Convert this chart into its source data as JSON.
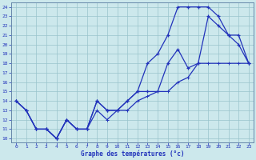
{
  "xlabel": "Graphe des températures (°c)",
  "bg_color": "#cce8ec",
  "line_color": "#2233bb",
  "grid_color": "#99c4cc",
  "xlim": [
    -0.5,
    23.5
  ],
  "ylim": [
    9.6,
    24.5
  ],
  "xticks": [
    0,
    1,
    2,
    3,
    4,
    5,
    6,
    7,
    8,
    9,
    10,
    11,
    12,
    13,
    14,
    15,
    16,
    17,
    18,
    19,
    20,
    21,
    22,
    23
  ],
  "yticks": [
    10,
    11,
    12,
    13,
    14,
    15,
    16,
    17,
    18,
    19,
    20,
    21,
    22,
    23,
    24
  ],
  "line1_x": [
    0,
    1,
    2,
    3,
    4,
    5,
    6,
    7,
    8,
    9,
    10,
    11,
    12,
    13,
    14,
    15,
    16,
    17,
    18,
    19,
    20,
    21,
    22,
    23
  ],
  "line1_y": [
    14,
    13,
    11,
    11,
    10,
    12,
    11,
    11,
    14,
    13,
    13,
    14,
    15,
    18,
    19,
    21,
    24,
    24,
    24,
    24,
    23,
    21,
    20,
    18
  ],
  "line2_x": [
    0,
    1,
    2,
    3,
    4,
    5,
    6,
    7,
    8,
    9,
    10,
    11,
    12,
    13,
    14,
    15,
    16,
    17,
    18,
    19,
    20,
    21,
    22,
    23
  ],
  "line2_y": [
    14,
    13,
    11,
    11,
    10,
    12,
    11,
    11,
    14,
    13,
    13,
    14,
    15,
    15,
    15,
    18,
    19.5,
    17.5,
    18,
    23,
    22,
    21,
    21,
    18
  ],
  "line3_x": [
    0,
    1,
    2,
    3,
    4,
    5,
    6,
    7,
    8,
    9,
    10,
    11,
    12,
    13,
    14,
    15,
    16,
    17,
    18,
    19,
    20,
    21,
    22,
    23
  ],
  "line3_y": [
    14,
    13,
    11,
    11,
    10,
    12,
    11,
    11,
    13,
    12,
    13,
    13,
    14,
    14.5,
    15,
    15,
    16,
    16.5,
    18,
    18,
    18,
    18,
    18,
    18
  ]
}
